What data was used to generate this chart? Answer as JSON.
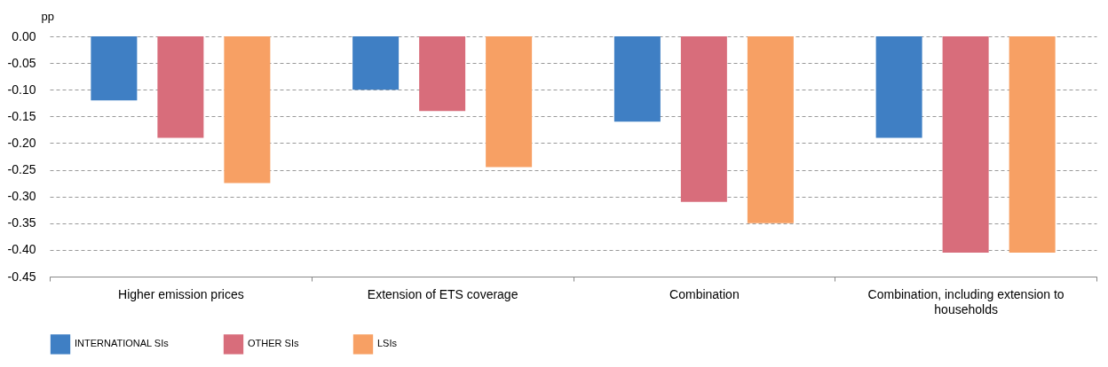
{
  "chart_data": {
    "type": "bar",
    "ylabel": "pp",
    "categories": [
      "Higher emission prices",
      "Extension of ETS coverage",
      "Combination",
      "Combination, including extension to households"
    ],
    "series": [
      {
        "name": "INTERNATIONAL SIs",
        "color": "#3f7fc4",
        "values": [
          -0.12,
          -0.1,
          -0.16,
          -0.19
        ]
      },
      {
        "name": "OTHER SIs",
        "color": "#d86d7b",
        "values": [
          -0.19,
          -0.14,
          -0.31,
          -0.405
        ]
      },
      {
        "name": "LSIs",
        "color": "#f7a064",
        "values": [
          -0.275,
          -0.245,
          -0.35,
          -0.405
        ]
      }
    ],
    "ylim": [
      -0.45,
      0
    ],
    "yticks": [
      {
        "value": 0,
        "label": "0.00"
      },
      {
        "value": -0.05,
        "label": "-0.05"
      },
      {
        "value": -0.1,
        "label": "-0.10"
      },
      {
        "value": -0.15,
        "label": "-0.15"
      },
      {
        "value": -0.2,
        "label": "-0.20"
      },
      {
        "value": -0.25,
        "label": "-0.25"
      },
      {
        "value": -0.3,
        "label": "-0.30"
      },
      {
        "value": -0.35,
        "label": "-0.35"
      },
      {
        "value": -0.4,
        "label": "-0.40"
      },
      {
        "value": -0.45,
        "label": "-0.45"
      }
    ],
    "grid": "y",
    "legend": "bottom left"
  }
}
